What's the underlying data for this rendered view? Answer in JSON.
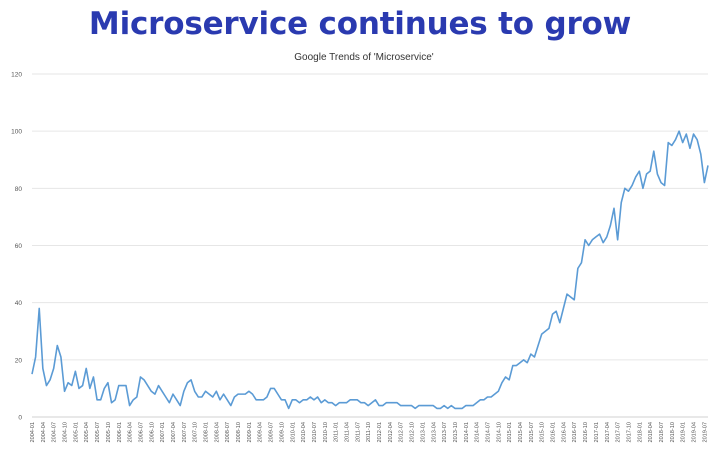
{
  "headline": "Microservice continues to grow",
  "colors": {
    "headline": "#2a3ab0",
    "series": "#5b9bd5"
  },
  "chart_data": {
    "type": "line",
    "title": "Google Trends of 'Microservice'",
    "xlabel": "",
    "ylabel": "",
    "ylim": [
      0,
      120
    ],
    "yticks": [
      0,
      20,
      40,
      60,
      80,
      100,
      120
    ],
    "grid": true,
    "start_month": "2004-01",
    "x_tick_step_months": 3,
    "series": [
      {
        "name": "Microservice",
        "values": [
          15,
          21,
          38,
          17,
          11,
          13,
          17,
          25,
          21,
          9,
          12,
          11,
          16,
          10,
          11,
          17,
          10,
          14,
          6,
          6,
          10,
          12,
          5,
          6,
          11,
          11,
          11,
          4,
          6,
          7,
          14,
          13,
          11,
          9,
          8,
          11,
          9,
          7,
          5,
          8,
          6,
          4,
          9,
          12,
          13,
          9,
          7,
          7,
          9,
          8,
          7,
          9,
          6,
          8,
          6,
          4,
          7,
          8,
          8,
          8,
          9,
          8,
          6,
          6,
          6,
          7,
          10,
          10,
          8,
          6,
          6,
          3,
          6,
          6,
          5,
          6,
          6,
          7,
          6,
          7,
          5,
          6,
          5,
          5,
          4,
          5,
          5,
          5,
          6,
          6,
          6,
          5,
          5,
          4,
          5,
          6,
          4,
          4,
          5,
          5,
          5,
          5,
          4,
          4,
          4,
          4,
          3,
          4,
          4,
          4,
          4,
          4,
          3,
          3,
          4,
          3,
          4,
          3,
          3,
          3,
          4,
          4,
          4,
          5,
          6,
          6,
          7,
          7,
          8,
          9,
          12,
          14,
          13,
          18,
          18,
          19,
          20,
          19,
          22,
          21,
          25,
          29,
          30,
          31,
          36,
          37,
          33,
          38,
          43,
          42,
          41,
          52,
          54,
          62,
          60,
          62,
          63,
          64,
          61,
          63,
          67,
          73,
          62,
          75,
          80,
          79,
          81,
          84,
          86,
          80,
          85,
          86,
          93,
          85,
          82,
          81,
          96,
          95,
          97,
          100,
          96,
          99,
          94,
          99,
          97,
          92,
          82,
          88
        ]
      }
    ]
  }
}
